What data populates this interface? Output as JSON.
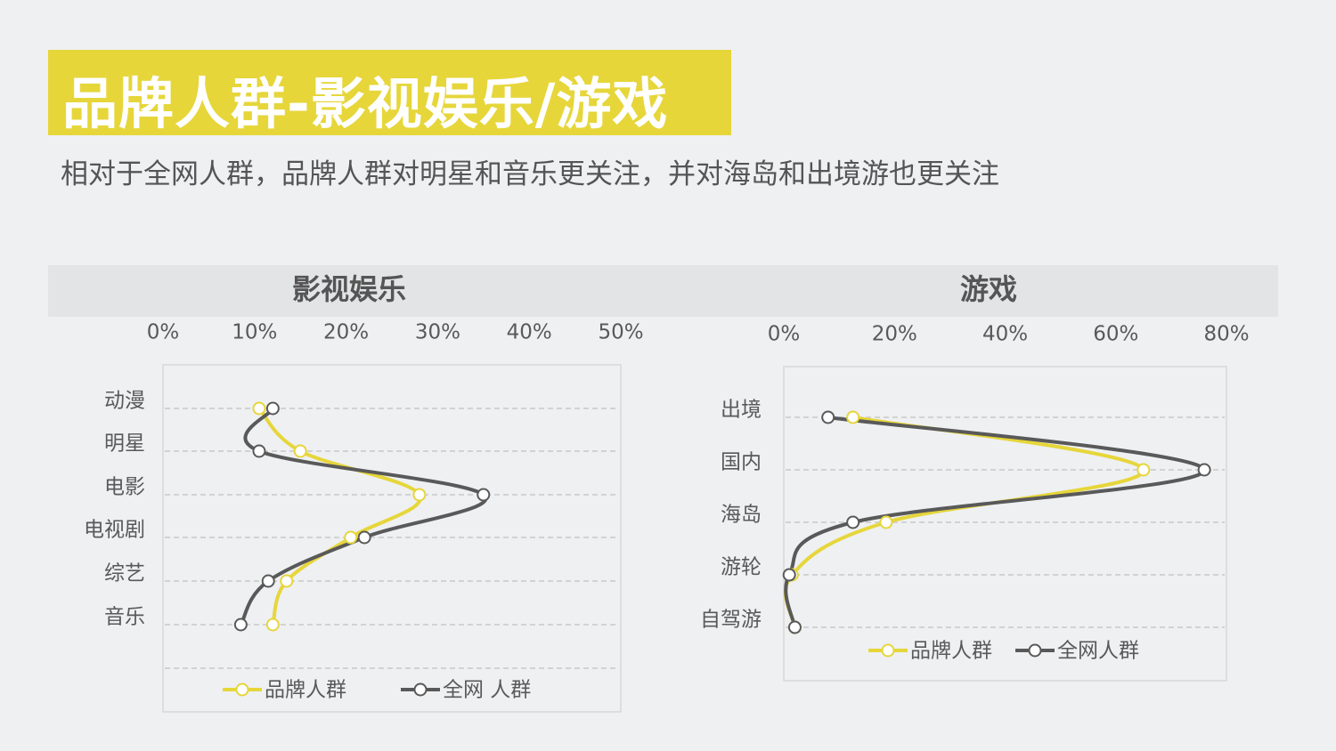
{
  "header": {
    "title": "品牌人群-影视娱乐/游戏",
    "subtitle": "相对于全网人群，品牌人群对明星和音乐更关注，并对海岛和出境游也更关注"
  },
  "colors": {
    "accent": "#e6d63a",
    "brand_line": "#e6d63a",
    "all_line": "#595959",
    "background": "#eef0f2"
  },
  "chart_data": [
    {
      "type": "line",
      "title": "影视娱乐",
      "orientation": "vertical-categories",
      "categories": [
        "动漫",
        "明星",
        "电影",
        "电视剧",
        "综艺",
        "音乐"
      ],
      "xlim": [
        0,
        50
      ],
      "xticks": [
        "0%",
        "10%",
        "20%",
        "30%",
        "40%",
        "50%"
      ],
      "series": [
        {
          "name": "品牌人群",
          "color": "#e6d63a",
          "values": [
            10.5,
            15,
            28,
            20.5,
            13.5,
            12
          ]
        },
        {
          "name": "全网  人群",
          "color": "#595959",
          "values": [
            12,
            10.5,
            35,
            22,
            11.5,
            8.5
          ]
        }
      ],
      "legend": "bottom",
      "grid": true
    },
    {
      "type": "line",
      "title": "游戏",
      "orientation": "vertical-categories",
      "categories": [
        "出境",
        "国内",
        "海岛",
        "游轮",
        "自驾游"
      ],
      "xlim": [
        0,
        80
      ],
      "xticks": [
        "0%",
        "20%",
        "40%",
        "60%",
        "80%"
      ],
      "series": [
        {
          "name": "品牌人群",
          "color": "#e6d63a",
          "values": [
            12.5,
            65,
            18.5,
            1.5,
            2
          ]
        },
        {
          "name": "全网人群",
          "color": "#595959",
          "values": [
            8,
            76,
            12.5,
            1,
            2
          ]
        }
      ],
      "legend": "bottom",
      "grid": true
    }
  ]
}
